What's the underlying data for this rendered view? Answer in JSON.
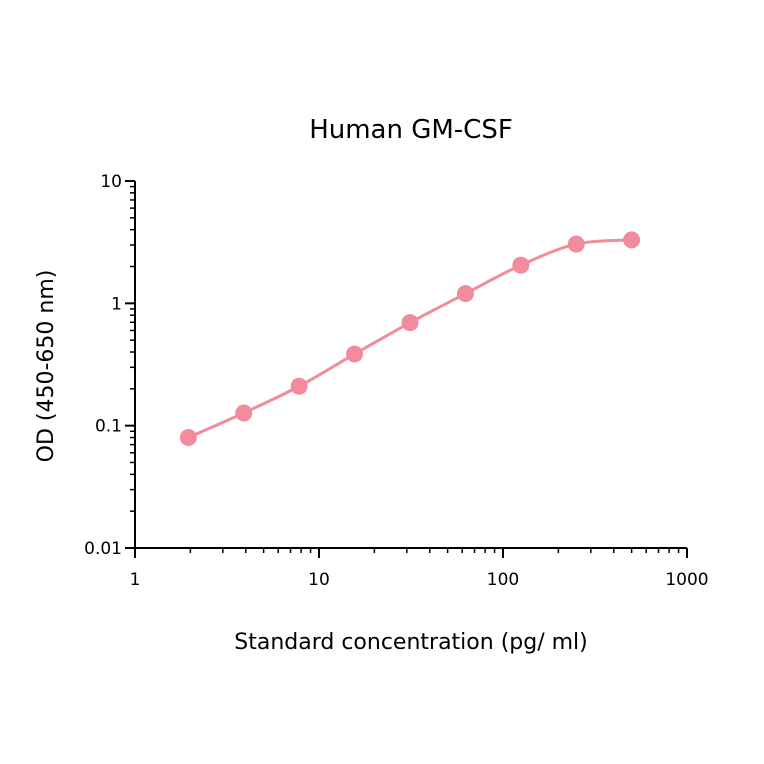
{
  "chart_data": {
    "type": "line",
    "title": "Human GM-CSF",
    "xlabel": "Standard concentration (pg/ ml)",
    "ylabel": "OD (450-650 nm)",
    "x_scale": "log",
    "y_scale": "log",
    "xlim": [
      1,
      1000
    ],
    "ylim": [
      0.01,
      10
    ],
    "x_ticks": [
      {
        "value": 1,
        "label": "1"
      },
      {
        "value": 10,
        "label": "10"
      },
      {
        "value": 100,
        "label": "100"
      },
      {
        "value": 1000,
        "label": "1000"
      }
    ],
    "y_ticks": [
      {
        "value": 0.01,
        "label": "0.01"
      },
      {
        "value": 0.1,
        "label": "0.1"
      },
      {
        "value": 1,
        "label": "1"
      },
      {
        "value": 10,
        "label": "10"
      }
    ],
    "grid": false,
    "legend": "none",
    "series": [
      {
        "color": "#f28b9b",
        "x": [
          1.95,
          3.9,
          7.8,
          15.6,
          31.25,
          62.5,
          125,
          250,
          500
        ],
        "values": [
          0.08,
          0.127,
          0.21,
          0.385,
          0.695,
          1.2,
          2.05,
          3.05,
          3.3
        ]
      }
    ]
  }
}
